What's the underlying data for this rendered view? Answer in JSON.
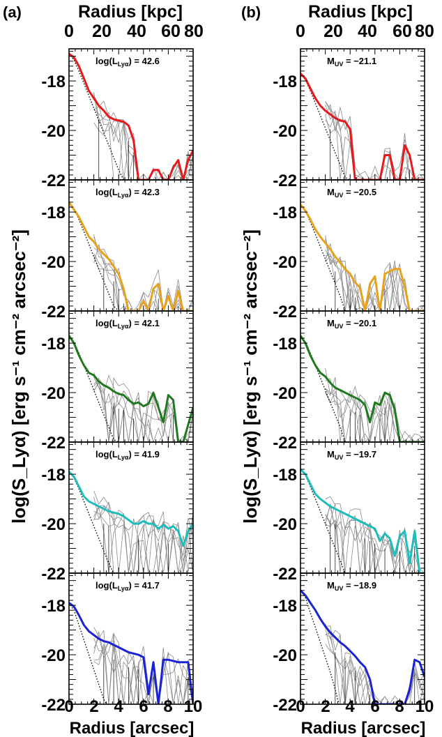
{
  "figure": {
    "panel_labels": [
      "(a)",
      "(b)"
    ],
    "top_axis_label": "Radius [kpc]",
    "top_ticks": [
      "0",
      "20",
      "40",
      "60",
      "80"
    ],
    "bottom_axis_label": "Radius [arcsec]",
    "bottom_ticks": [
      "0",
      "2",
      "4",
      "6",
      "8",
      "10"
    ],
    "y_axis_label": "log(S_Lyα) [erg s⁻¹ cm⁻² arcsec⁻²]",
    "y_ticks": [
      "-18",
      "-20",
      "-22"
    ]
  },
  "chart_data": [
    {
      "type": "line",
      "column": "a",
      "xlim": [
        0,
        10
      ],
      "ylim": [
        -22,
        -16.7
      ],
      "xlabel": "Radius [arcsec]",
      "ylabel": "log(S_Lyα) [erg s⁻¹ cm⁻² arcsec⁻²]",
      "panels": [
        {
          "annotation": "log(L_Lyα) = 42.6",
          "ann_main": "log(L",
          "ann_sub": "Lyα",
          "ann_rest": ") = 42.6",
          "color": "#e8191d",
          "x": [
            0.0,
            0.4,
            0.8,
            1.2,
            1.6,
            2.0,
            2.4,
            2.8,
            3.2,
            3.6,
            4.0,
            4.4,
            4.8,
            5.2,
            5.6,
            6.0,
            6.4,
            6.8,
            7.2,
            7.6,
            8.0,
            8.4,
            8.8,
            9.2,
            9.6,
            10.0
          ],
          "y": [
            -16.9,
            -17.05,
            -17.4,
            -17.9,
            -18.4,
            -18.7,
            -19.0,
            -19.2,
            -19.45,
            -19.55,
            -19.6,
            -19.65,
            -19.8,
            -20.4,
            -22.0,
            -22.0,
            -22.0,
            -21.6,
            -21.6,
            -22.0,
            -22.0,
            -21.5,
            -21.2,
            -22.0,
            -21.2,
            -20.8
          ],
          "psf": {
            "x": [
              0.0,
              0.4,
              0.8,
              1.2,
              1.6,
              2.0,
              2.4,
              2.8,
              3.2,
              3.6,
              4.0,
              4.4
            ],
            "y": [
              -16.9,
              -17.15,
              -17.6,
              -18.1,
              -18.6,
              -19.1,
              -19.6,
              -20.1,
              -20.6,
              -21.1,
              -21.6,
              -22.0
            ]
          }
        },
        {
          "annotation": "log(L_Lyα) = 42.3",
          "ann_main": "log(L",
          "ann_sub": "Lyα",
          "ann_rest": ") = 42.3",
          "color": "#e8a11b",
          "x": [
            0.0,
            0.4,
            0.8,
            1.2,
            1.6,
            2.0,
            2.4,
            2.8,
            3.2,
            3.6,
            4.0,
            4.4,
            4.8,
            5.2,
            5.6,
            6.0,
            6.4,
            6.8,
            7.2,
            7.6,
            8.0,
            8.4,
            8.8,
            9.2,
            9.6,
            10.0
          ],
          "y": [
            -17.6,
            -17.9,
            -18.2,
            -18.6,
            -19.0,
            -19.2,
            -19.5,
            -19.7,
            -19.9,
            -20.2,
            -20.5,
            -21.1,
            -22.0,
            -22.0,
            -22.0,
            -21.6,
            -22.0,
            -21.1,
            -20.9,
            -22.0,
            -21.4,
            -22.0,
            -21.2,
            -22.0,
            -22.0,
            -22.0
          ],
          "psf": {
            "x": [
              0.0,
              0.4,
              0.8,
              1.2,
              1.6,
              2.0,
              2.4,
              2.8,
              3.2,
              3.6,
              4.0
            ],
            "y": [
              -17.6,
              -17.85,
              -18.3,
              -18.8,
              -19.3,
              -19.8,
              -20.3,
              -20.8,
              -21.3,
              -21.8,
              -22.0
            ]
          }
        },
        {
          "annotation": "log(L_Lyα) = 42.1",
          "ann_main": "log(L",
          "ann_sub": "Lyα",
          "ann_rest": ") = 42.1",
          "color": "#1f7a1f",
          "x": [
            0.0,
            0.4,
            0.8,
            1.2,
            1.6,
            2.0,
            2.4,
            2.8,
            3.2,
            3.6,
            4.0,
            4.4,
            4.8,
            5.2,
            5.6,
            6.0,
            6.4,
            6.8,
            7.2,
            7.6,
            8.0,
            8.4,
            8.8,
            9.2,
            9.6,
            10.0
          ],
          "y": [
            -17.7,
            -18.0,
            -18.5,
            -18.9,
            -19.2,
            -19.3,
            -19.55,
            -19.7,
            -19.8,
            -19.95,
            -20.05,
            -20.1,
            -20.3,
            -20.45,
            -20.4,
            -20.55,
            -20.45,
            -20.0,
            -20.6,
            -21.2,
            -20.1,
            -20.3,
            -22.0,
            -22.0,
            -21.3,
            -20.6
          ],
          "psf": {
            "x": [
              0.0,
              0.4,
              0.8,
              1.2,
              1.6,
              2.0,
              2.4,
              2.8,
              3.2,
              3.6,
              4.0
            ],
            "y": [
              -17.7,
              -17.95,
              -18.4,
              -18.9,
              -19.4,
              -19.9,
              -20.4,
              -20.9,
              -21.4,
              -21.9,
              -22.0
            ]
          }
        },
        {
          "annotation": "log(L_Lyα) = 41.9",
          "ann_main": "log(L",
          "ann_sub": "Lyα",
          "ann_rest": ") = 41.9",
          "color": "#1fbcbc",
          "x": [
            0.0,
            0.4,
            0.8,
            1.2,
            1.6,
            2.0,
            2.4,
            2.8,
            3.2,
            3.6,
            4.0,
            4.4,
            4.8,
            5.2,
            5.6,
            6.0,
            6.4,
            6.8,
            7.2,
            7.6,
            8.0,
            8.4,
            8.8,
            9.2,
            9.6,
            10.0
          ],
          "y": [
            -17.9,
            -18.1,
            -18.5,
            -18.9,
            -19.1,
            -19.2,
            -19.3,
            -19.4,
            -19.5,
            -19.55,
            -19.6,
            -19.7,
            -19.85,
            -20.0,
            -20.0,
            -19.9,
            -20.0,
            -20.0,
            -20.2,
            -20.05,
            -20.2,
            -20.1,
            -20.3,
            -20.9,
            -20.3,
            -20.0
          ],
          "psf": {
            "x": [
              0.0,
              0.4,
              0.8,
              1.2,
              1.6,
              2.0,
              2.4,
              2.8,
              3.2,
              3.6
            ],
            "y": [
              -17.9,
              -18.15,
              -18.6,
              -19.1,
              -19.6,
              -20.1,
              -20.6,
              -21.1,
              -21.6,
              -22.0
            ]
          }
        },
        {
          "annotation": "log(L_Lyα) = 41.7",
          "ann_main": "log(L",
          "ann_sub": "Lyα",
          "ann_rest": ") = 41.7",
          "color": "#1a22d2",
          "x": [
            0.0,
            0.4,
            0.8,
            1.2,
            1.6,
            2.0,
            2.4,
            2.8,
            3.2,
            3.6,
            4.0,
            4.4,
            4.8,
            5.2,
            5.6,
            6.0,
            6.4,
            6.8,
            7.2,
            7.6,
            8.0,
            8.4,
            8.8,
            9.2,
            9.6,
            10.0
          ],
          "y": [
            -17.9,
            -18.05,
            -18.4,
            -18.8,
            -19.05,
            -19.2,
            -19.35,
            -19.45,
            -19.5,
            -19.6,
            -19.7,
            -19.8,
            -19.9,
            -19.95,
            -20.0,
            -20.1,
            -21.6,
            -20.3,
            -22.0,
            -20.2,
            -20.2,
            -20.25,
            -20.3,
            -20.3,
            -20.3,
            -22.0
          ],
          "psf": {
            "x": [
              0.0,
              0.4,
              0.8,
              1.2,
              1.6,
              2.0,
              2.4,
              2.8,
              3.0
            ],
            "y": [
              -17.9,
              -18.2,
              -18.8,
              -19.4,
              -20.0,
              -20.6,
              -21.2,
              -21.8,
              -22.0
            ]
          }
        }
      ]
    },
    {
      "type": "line",
      "column": "b",
      "xlim": [
        0,
        10
      ],
      "ylim": [
        -22,
        -16.7
      ],
      "xlabel": "Radius [arcsec]",
      "ylabel": "log(S_Lyα) [erg s⁻¹ cm⁻² arcsec⁻²]",
      "panels": [
        {
          "annotation": "M_UV = −21.1",
          "ann_main": "M",
          "ann_sub": "UV",
          "ann_rest": " = −21.1",
          "color": "#e8191d",
          "x": [
            0.0,
            0.4,
            0.8,
            1.2,
            1.6,
            2.0,
            2.4,
            2.8,
            3.2,
            3.6,
            4.0,
            4.4,
            4.8,
            5.2,
            5.6,
            6.0,
            6.4,
            6.8,
            7.2,
            7.6,
            8.0,
            8.4,
            8.8,
            9.2,
            9.6,
            10.0
          ],
          "y": [
            -17.7,
            -17.9,
            -18.3,
            -18.7,
            -19.0,
            -19.2,
            -19.35,
            -19.5,
            -19.6,
            -19.65,
            -19.95,
            -22.0,
            -22.0,
            -22.0,
            -22.0,
            -22.0,
            -22.0,
            -21.0,
            -21.0,
            -22.0,
            -22.0,
            -20.6,
            -21.0,
            -22.0,
            -22.0,
            -22.0
          ],
          "psf": {
            "x": [
              0.0,
              0.4,
              0.8,
              1.2,
              1.6,
              2.0,
              2.4,
              2.8,
              3.2,
              3.6,
              4.0
            ],
            "y": [
              -17.7,
              -17.95,
              -18.4,
              -18.9,
              -19.4,
              -19.9,
              -20.4,
              -20.9,
              -21.4,
              -21.9,
              -22.0
            ]
          }
        },
        {
          "annotation": "M_UV = −20.5",
          "ann_main": "M",
          "ann_sub": "UV",
          "ann_rest": " = −20.5",
          "color": "#e8a11b",
          "x": [
            0.0,
            0.4,
            0.8,
            1.2,
            1.6,
            2.0,
            2.4,
            2.8,
            3.2,
            3.6,
            4.0,
            4.4,
            4.8,
            5.2,
            5.6,
            6.0,
            6.4,
            6.8,
            7.2,
            7.6,
            8.0,
            8.4,
            8.8,
            9.2,
            9.6,
            10.0
          ],
          "y": [
            -17.7,
            -17.95,
            -18.3,
            -18.7,
            -19.0,
            -19.25,
            -19.5,
            -19.8,
            -20.05,
            -20.3,
            -20.5,
            -20.85,
            -21.05,
            -22.0,
            -20.9,
            -20.6,
            -22.0,
            -20.5,
            -20.4,
            -20.3,
            -20.3,
            -21.0,
            -22.0,
            -22.0,
            -22.0,
            -22.0
          ],
          "psf": {
            "x": [
              0.0,
              0.4,
              0.8,
              1.2,
              1.6,
              2.0,
              2.4,
              2.8,
              3.2,
              3.6
            ],
            "y": [
              -17.7,
              -17.95,
              -18.4,
              -18.9,
              -19.4,
              -19.9,
              -20.4,
              -20.9,
              -21.4,
              -22.0
            ]
          }
        },
        {
          "annotation": "M_UV = −20.1",
          "ann_main": "M",
          "ann_sub": "UV",
          "ann_rest": " = −20.1",
          "color": "#1f7a1f",
          "x": [
            0.0,
            0.4,
            0.8,
            1.2,
            1.6,
            2.0,
            2.4,
            2.8,
            3.2,
            3.6,
            4.0,
            4.4,
            4.8,
            5.2,
            5.6,
            6.0,
            6.4,
            6.8,
            7.2,
            7.6,
            8.0,
            8.4,
            8.8,
            9.2,
            9.6,
            10.0
          ],
          "y": [
            -17.7,
            -18.0,
            -18.5,
            -18.9,
            -19.2,
            -19.35,
            -19.6,
            -19.8,
            -19.9,
            -20.0,
            -20.1,
            -20.2,
            -20.3,
            -20.5,
            -21.2,
            -20.4,
            -20.5,
            -20.0,
            -20.1,
            -20.7,
            -22.0,
            -22.0,
            -22.0,
            -22.0,
            -22.0,
            -22.0
          ],
          "psf": {
            "x": [
              0.0,
              0.4,
              0.8,
              1.2,
              1.6,
              2.0,
              2.4,
              2.8,
              3.2,
              3.6
            ],
            "y": [
              -17.7,
              -17.95,
              -18.4,
              -18.9,
              -19.4,
              -19.9,
              -20.4,
              -20.9,
              -21.4,
              -22.0
            ]
          }
        },
        {
          "annotation": "M_UV = −19.7",
          "ann_main": "M",
          "ann_sub": "UV",
          "ann_rest": " = −19.7",
          "color": "#1fbcbc",
          "x": [
            0.0,
            0.4,
            0.8,
            1.2,
            1.6,
            2.0,
            2.4,
            2.8,
            3.2,
            3.6,
            4.0,
            4.4,
            4.8,
            5.2,
            5.6,
            6.0,
            6.4,
            6.8,
            7.2,
            7.6,
            8.0,
            8.4,
            8.8,
            9.2,
            9.6,
            10.0
          ],
          "y": [
            -17.8,
            -18.0,
            -18.4,
            -18.8,
            -19.0,
            -19.15,
            -19.3,
            -19.4,
            -19.5,
            -19.6,
            -19.7,
            -19.8,
            -19.9,
            -20.0,
            -20.1,
            -20.2,
            -20.7,
            -20.4,
            -20.6,
            -21.3,
            -20.5,
            -20.3,
            -21.6,
            -20.3,
            -22.0,
            -22.0
          ],
          "psf": {
            "x": [
              0.0,
              0.4,
              0.8,
              1.2,
              1.6,
              2.0,
              2.4,
              2.8,
              3.2,
              3.6
            ],
            "y": [
              -17.8,
              -18.05,
              -18.5,
              -19.0,
              -19.5,
              -20.0,
              -20.5,
              -21.0,
              -21.5,
              -22.0
            ]
          }
        },
        {
          "annotation": "M_UV = −18.9",
          "ann_main": "M",
          "ann_sub": "UV",
          "ann_rest": " = −18.9",
          "color": "#1a22d2",
          "x": [
            0.0,
            0.4,
            0.8,
            1.2,
            1.6,
            2.0,
            2.4,
            2.8,
            3.2,
            3.6,
            4.0,
            4.4,
            4.8,
            5.2,
            5.6,
            6.0,
            6.4,
            6.8,
            7.2,
            7.6,
            8.0,
            8.4,
            8.8,
            9.2,
            9.6,
            10.0
          ],
          "y": [
            -17.4,
            -17.6,
            -17.9,
            -18.2,
            -18.55,
            -18.85,
            -19.1,
            -19.3,
            -19.5,
            -19.65,
            -19.85,
            -20.05,
            -20.3,
            -20.5,
            -21.0,
            -22.0,
            -22.0,
            -22.0,
            -22.0,
            -22.0,
            -22.0,
            -22.0,
            -21.4,
            -20.2,
            -20.3,
            -20.9
          ],
          "psf": {
            "x": [
              0.0,
              0.4,
              0.8,
              1.2,
              1.6,
              2.0,
              2.4,
              2.8,
              3.1
            ],
            "y": [
              -17.4,
              -17.7,
              -18.3,
              -18.9,
              -19.5,
              -20.1,
              -20.7,
              -21.4,
              -22.0
            ]
          }
        }
      ]
    }
  ]
}
